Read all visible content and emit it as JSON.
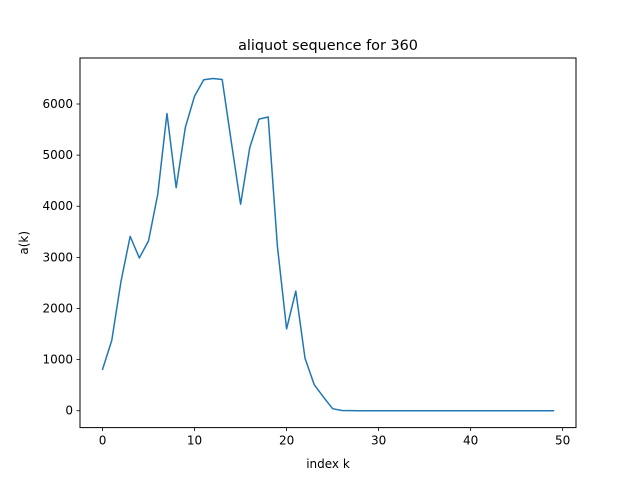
{
  "chart_data": {
    "type": "line",
    "title": "aliquot sequence for 360",
    "xlabel": "index k",
    "ylabel": "a(k)",
    "xlim": [
      -2.45,
      51.45
    ],
    "ylim": [
      -330,
      6900
    ],
    "xticks": [
      0,
      10,
      20,
      30,
      40,
      50
    ],
    "yticks": [
      0,
      1000,
      2000,
      3000,
      4000,
      5000,
      6000
    ],
    "grid": false,
    "legend": "none",
    "series": [
      {
        "color": "#1f77b4",
        "x": [
          0,
          1,
          2,
          3,
          4,
          5,
          6,
          7,
          8,
          9,
          10,
          11,
          12,
          13,
          14,
          15,
          16,
          17,
          18,
          19,
          20,
          21,
          22,
          23,
          24,
          25,
          26,
          27,
          28,
          29,
          30,
          31,
          32,
          33,
          34,
          35,
          36,
          37,
          38,
          39,
          40,
          41,
          42,
          43,
          44,
          45,
          46,
          47,
          48,
          49
        ],
        "y": [
          810,
          1374,
          2526,
          3411,
          2989,
          3325,
          4235,
          5815,
          4363,
          5545,
          6155,
          6475,
          6500,
          6480,
          5250,
          4040,
          5150,
          5705,
          5745,
          3220,
          1600,
          2340,
          1030,
          510,
          270,
          40,
          5,
          3,
          0,
          0,
          0,
          0,
          0,
          0,
          0,
          0,
          0,
          0,
          0,
          0,
          0,
          0,
          0,
          0,
          0,
          0,
          0,
          0,
          0,
          0
        ]
      }
    ]
  }
}
